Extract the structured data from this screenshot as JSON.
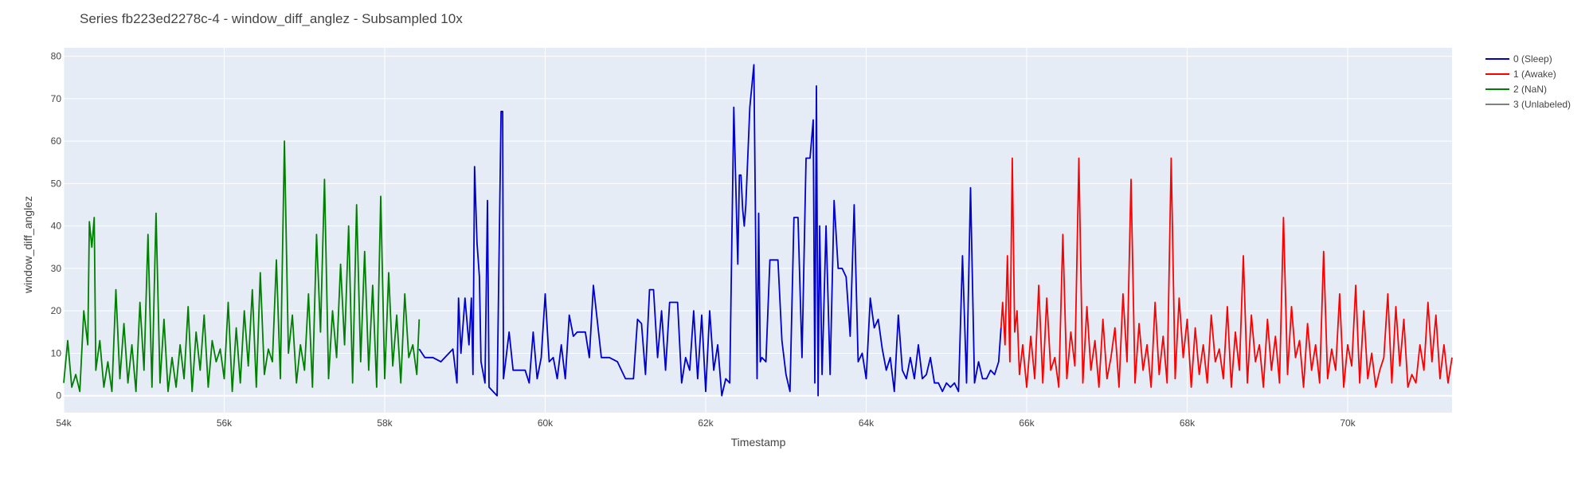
{
  "chart_data": {
    "type": "line",
    "title": "Series fb223ed2278c-4 - window_diff_anglez - Subsampled 10x",
    "xlabel": "Timestamp",
    "ylabel": "window_diff_anglez",
    "xlim": [
      54000,
      71300
    ],
    "ylim": [
      -4,
      82
    ],
    "grid": true,
    "legend_position": "top-right",
    "x_ticks": [
      54000,
      56000,
      58000,
      60000,
      62000,
      64000,
      66000,
      68000,
      70000
    ],
    "x_tick_labels": [
      "54k",
      "56k",
      "58k",
      "60k",
      "62k",
      "64k",
      "66k",
      "68k",
      "70k"
    ],
    "y_ticks": [
      0,
      10,
      20,
      30,
      40,
      50,
      60,
      70,
      80
    ],
    "y_tick_labels": [
      "0",
      "10",
      "20",
      "30",
      "40",
      "50",
      "60",
      "70",
      "80"
    ],
    "colors": {
      "plot_bg": "#e5ecf6",
      "grid": "#ffffff",
      "sleep": "#0000cd",
      "awake": "#ff0000",
      "nan": "#008000",
      "unlabeled": "#808080"
    },
    "legend": [
      {
        "label": "0 (Sleep)",
        "color": "#0000cd"
      },
      {
        "label": "1 (Awake)",
        "color": "#ff0000"
      },
      {
        "label": "2 (NaN)",
        "color": "#008000"
      },
      {
        "label": "3 (Unlabeled)",
        "color": "#808080"
      }
    ],
    "series": [
      {
        "name": "2 (NaN)",
        "color": "#008000",
        "x": [
          54000,
          54050,
          54100,
          54150,
          54200,
          54250,
          54300,
          54320,
          54350,
          54380,
          54400,
          54450,
          54500,
          54550,
          54600,
          54650,
          54700,
          54750,
          54800,
          54850,
          54900,
          54950,
          55000,
          55050,
          55100,
          55150,
          55200,
          55250,
          55300,
          55350,
          55400,
          55450,
          55500,
          55550,
          55600,
          55650,
          55700,
          55750,
          55800,
          55850,
          55900,
          55950,
          56000,
          56050,
          56100,
          56150,
          56200,
          56250,
          56300,
          56350,
          56400,
          56450,
          56500,
          56550,
          56600,
          56650,
          56700,
          56750,
          56800,
          56850,
          56900,
          56950,
          57000,
          57050,
          57100,
          57150,
          57200,
          57250,
          57300,
          57350,
          57400,
          57450,
          57500,
          57550,
          57600,
          57650,
          57700,
          57750,
          57800,
          57850,
          57900,
          57950,
          58000,
          58050,
          58100,
          58150,
          58200,
          58250,
          58300,
          58350,
          58400,
          58430
        ],
        "values": [
          3,
          13,
          2,
          5,
          1,
          20,
          12,
          41,
          35,
          42,
          6,
          13,
          2,
          8,
          1,
          25,
          4,
          17,
          3,
          12,
          1,
          22,
          6,
          38,
          2,
          43,
          3,
          18,
          1,
          9,
          2,
          12,
          4,
          21,
          1,
          15,
          6,
          19,
          2,
          13,
          8,
          11,
          4,
          22,
          1,
          16,
          3,
          20,
          7,
          25,
          2,
          29,
          5,
          11,
          8,
          32,
          4,
          60,
          10,
          19,
          3,
          12,
          6,
          24,
          2,
          38,
          15,
          51,
          4,
          20,
          9,
          31,
          12,
          40,
          3,
          45,
          8,
          34,
          6,
          26,
          2,
          47,
          4,
          29,
          7,
          19,
          3,
          24,
          9,
          12,
          5,
          18
        ]
      },
      {
        "name": "0 (Sleep)",
        "color": "#0000cd",
        "x": [
          58430,
          58500,
          58600,
          58700,
          58800,
          58850,
          58900,
          58920,
          58950,
          59000,
          59050,
          59080,
          59100,
          59120,
          59150,
          59180,
          59200,
          59250,
          59280,
          59300,
          59350,
          59400,
          59450,
          59470,
          59480,
          59500,
          59550,
          59600,
          59650,
          59700,
          59750,
          59800,
          59850,
          59900,
          59950,
          60000,
          60050,
          60100,
          60150,
          60200,
          60250,
          60300,
          60350,
          60400,
          60450,
          60500,
          60550,
          60600,
          60700,
          60800,
          60900,
          61000,
          61100,
          61150,
          61200,
          61250,
          61300,
          61350,
          61400,
          61450,
          61500,
          61550,
          61600,
          61650,
          61700,
          61750,
          61800,
          61850,
          61900,
          61950,
          62000,
          62050,
          62100,
          62150,
          62200,
          62250,
          62300,
          62350,
          62400,
          62420,
          62440,
          62460,
          62480,
          62500,
          62550,
          62600,
          62640,
          62660,
          62680,
          62700,
          62750,
          62800,
          62850,
          62900,
          62950,
          63000,
          63050,
          63100,
          63150,
          63200,
          63250,
          63300,
          63340,
          63360,
          63380,
          63400,
          63420,
          63450,
          63500,
          63550,
          63600,
          63650,
          63700,
          63750,
          63800,
          63850,
          63900,
          63950,
          64000,
          64050,
          64100,
          64150,
          64200,
          64250,
          64300,
          64350,
          64400,
          64450,
          64500,
          64550,
          64600,
          64650,
          64700,
          64750,
          64800,
          64850,
          64900,
          64950,
          65000,
          65050,
          65100,
          65150,
          65200,
          65250,
          65300,
          65350,
          65400,
          65450,
          65500,
          65550,
          65600,
          65650,
          65680
        ],
        "values": [
          11,
          9,
          9,
          8,
          10,
          11,
          3,
          23,
          10,
          23,
          12,
          23,
          5,
          54,
          36,
          28,
          8,
          3,
          46,
          2,
          1,
          0,
          67,
          67,
          4,
          7,
          15,
          6,
          6,
          6,
          6,
          3,
          15,
          4,
          9,
          24,
          8,
          9,
          4,
          12,
          4,
          19,
          14,
          15,
          15,
          15,
          9,
          26,
          9,
          9,
          8,
          4,
          4,
          18,
          17,
          5,
          25,
          25,
          9,
          20,
          6,
          22,
          22,
          22,
          3,
          9,
          6,
          20,
          4,
          19,
          1,
          20,
          6,
          12,
          0,
          4,
          3,
          68,
          31,
          52,
          52,
          44,
          40,
          45,
          68,
          78,
          4,
          43,
          8,
          9,
          8,
          32,
          32,
          32,
          13,
          5,
          1,
          42,
          42,
          9,
          56,
          56,
          65,
          3,
          73,
          0,
          40,
          5,
          40,
          5,
          46,
          30,
          30,
          28,
          14,
          45,
          8,
          10,
          4,
          23,
          16,
          18,
          11,
          6,
          9,
          1,
          19,
          6,
          4,
          9,
          4,
          12,
          4,
          5,
          9,
          3,
          3,
          1,
          3,
          2,
          3,
          1,
          33,
          3,
          49,
          3,
          8,
          4,
          4,
          6,
          5,
          8,
          16
        ]
      },
      {
        "name": "1 (Awake)",
        "color": "#ff0000",
        "x": [
          65680,
          65700,
          65730,
          65760,
          65790,
          65820,
          65850,
          65880,
          65910,
          65950,
          66000,
          66050,
          66100,
          66150,
          66200,
          66250,
          66300,
          66350,
          66400,
          66450,
          66500,
          66550,
          66600,
          66650,
          66700,
          66750,
          66800,
          66850,
          66900,
          66950,
          67000,
          67050,
          67100,
          67150,
          67200,
          67250,
          67300,
          67350,
          67400,
          67450,
          67500,
          67550,
          67600,
          67650,
          67700,
          67750,
          67800,
          67850,
          67900,
          67950,
          68000,
          68050,
          68100,
          68150,
          68200,
          68250,
          68300,
          68350,
          68400,
          68450,
          68500,
          68550,
          68600,
          68650,
          68700,
          68750,
          68800,
          68850,
          68900,
          68950,
          69000,
          69050,
          69100,
          69150,
          69200,
          69250,
          69300,
          69350,
          69400,
          69450,
          69500,
          69550,
          69600,
          69650,
          69700,
          69750,
          69800,
          69850,
          69900,
          69950,
          70000,
          70050,
          70100,
          70150,
          70200,
          70250,
          70300,
          70350,
          70400,
          70450,
          70500,
          70550,
          70600,
          70650,
          70700,
          70750,
          70800,
          70850,
          70900,
          70950,
          71000,
          71050,
          71100,
          71150,
          71200,
          71250,
          71300
        ],
        "values": [
          16,
          22,
          12,
          33,
          8,
          56,
          15,
          20,
          5,
          12,
          2,
          14,
          4,
          26,
          3,
          23,
          6,
          9,
          2,
          38,
          4,
          15,
          7,
          56,
          3,
          21,
          6,
          13,
          2,
          18,
          4,
          9,
          16,
          2,
          24,
          8,
          51,
          3,
          17,
          6,
          12,
          2,
          22,
          5,
          14,
          3,
          56,
          4,
          23,
          9,
          18,
          2,
          16,
          5,
          12,
          3,
          19,
          8,
          11,
          4,
          21,
          2,
          15,
          6,
          33,
          3,
          19,
          8,
          12,
          2,
          18,
          6,
          14,
          3,
          42,
          5,
          21,
          9,
          13,
          2,
          17,
          6,
          12,
          3,
          34,
          4,
          11,
          6,
          24,
          2,
          12,
          7,
          26,
          3,
          20,
          4,
          10,
          2,
          6,
          9,
          24,
          3,
          21,
          7,
          18,
          2,
          5,
          3,
          12,
          6,
          22,
          8,
          19,
          4,
          12,
          3,
          9
        ]
      }
    ]
  }
}
